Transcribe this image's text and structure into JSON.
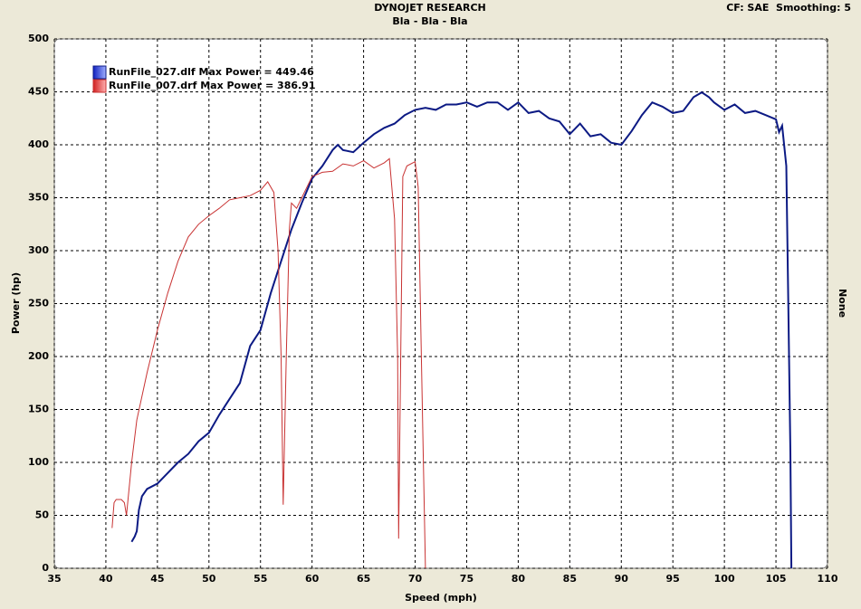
{
  "chart_data": {
    "type": "line",
    "title": "DYNOJET RESEARCH",
    "subtitle": "Bla - Bla - Bla",
    "header_right": "CF: SAE  Smoothing: 5",
    "x_label": "Speed (mph)",
    "y_label": "Power (hp)",
    "y2_label": "None",
    "xlim": [
      35,
      110
    ],
    "ylim": [
      0,
      500
    ],
    "xticks": [
      35,
      40,
      45,
      50,
      55,
      60,
      65,
      70,
      75,
      80,
      85,
      90,
      95,
      100,
      105,
      110
    ],
    "yticks": [
      0,
      50,
      100,
      150,
      200,
      250,
      300,
      350,
      400,
      450,
      500
    ],
    "grid": true,
    "series": [
      {
        "name": "RunFile_027.dlf Max Power = 449.46",
        "color": "#0c1a84",
        "x": [
          42.5,
          42.8,
          43,
          43.2,
          43.5,
          44,
          45,
          46,
          47,
          48,
          49,
          50,
          51,
          52,
          53,
          54,
          55,
          56,
          57,
          58,
          59,
          60,
          61,
          62,
          62.5,
          63,
          64,
          65,
          66,
          67,
          68,
          69,
          70,
          71,
          72,
          73,
          74,
          75,
          76,
          77,
          78,
          79,
          80,
          81,
          82,
          83,
          84,
          85,
          86,
          87,
          88,
          89,
          90,
          91,
          92,
          93,
          94,
          95,
          96,
          97,
          97.8,
          98.5,
          99,
          100,
          101,
          102,
          103,
          104,
          105,
          105.3,
          105.6,
          106,
          106.2,
          106.4,
          106.5
        ],
        "values": [
          25,
          30,
          35,
          55,
          68,
          75,
          80,
          90,
          100,
          108,
          120,
          128,
          145,
          160,
          175,
          210,
          225,
          260,
          290,
          320,
          345,
          368,
          380,
          395,
          400,
          395,
          393,
          402,
          410,
          416,
          420,
          428,
          433,
          435,
          433,
          438,
          438,
          440,
          436,
          440,
          440,
          433,
          440,
          430,
          432,
          425,
          422,
          410,
          420,
          408,
          410,
          402,
          400,
          413,
          428,
          440,
          436,
          430,
          432,
          445,
          449.46,
          445,
          440,
          433,
          438,
          430,
          432,
          428,
          424,
          412,
          418,
          380,
          250,
          110,
          0
        ]
      },
      {
        "name": "RunFile_007.drf Max Power = 386.91",
        "color": "#c83232",
        "x": [
          40.6,
          40.8,
          41,
          41.5,
          41.8,
          42,
          42.5,
          43,
          44,
          45,
          46,
          47,
          48,
          49,
          50,
          51,
          52,
          53,
          54,
          55,
          55.7,
          56.3,
          56.7,
          57,
          57.2,
          57.5,
          57.8,
          58,
          58.5,
          59,
          59.5,
          60,
          61,
          62,
          63,
          64,
          65,
          66,
          67,
          67.5,
          68,
          68.3,
          68.4,
          68.6,
          68.8,
          69.2,
          70,
          70.3,
          70.6,
          71
        ],
        "values": [
          38,
          62,
          65,
          65,
          62,
          50,
          100,
          140,
          185,
          225,
          260,
          290,
          313,
          325,
          333,
          340,
          348,
          350,
          352,
          357,
          365,
          355,
          300,
          200,
          60,
          200,
          320,
          345,
          340,
          350,
          360,
          370,
          374,
          375,
          382,
          380,
          385,
          378,
          383,
          386.91,
          330,
          200,
          28,
          200,
          370,
          380,
          384,
          360,
          200,
          0
        ]
      }
    ]
  }
}
